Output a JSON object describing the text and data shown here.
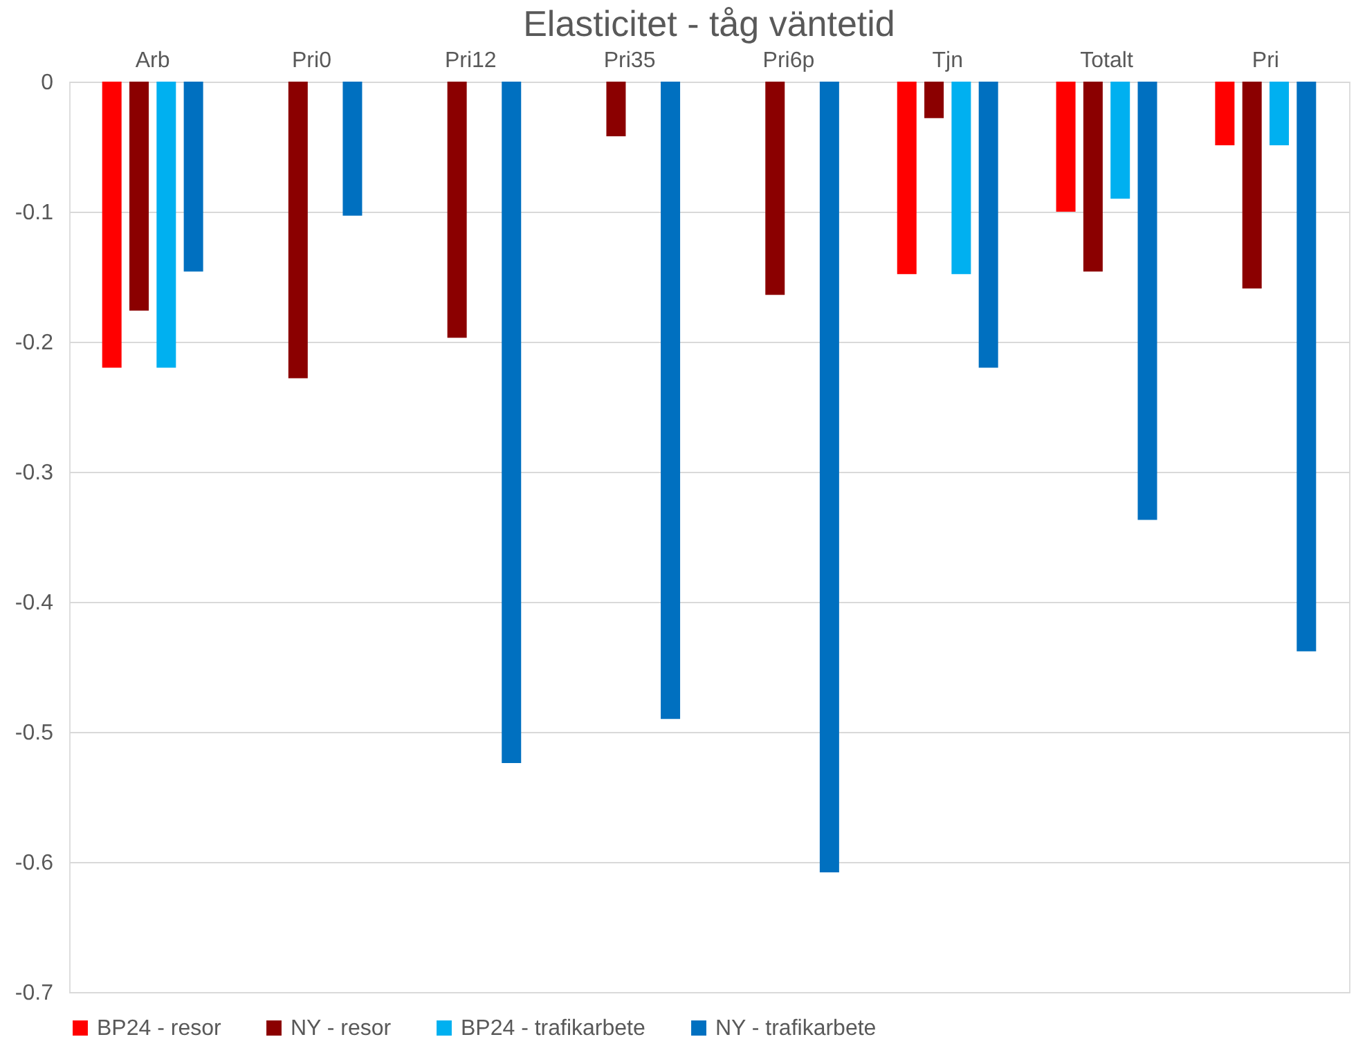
{
  "chart_data": {
    "type": "bar",
    "title": "Elasticitet - tåg väntetid",
    "categories": [
      "Arb",
      "Pri0",
      "Pri12",
      "Pri35",
      "Pri6p",
      "Tjn",
      "Totalt",
      "Pri"
    ],
    "series": [
      {
        "name": "BP24 - resor",
        "color": "#ff0000",
        "values": [
          -0.22,
          null,
          null,
          null,
          null,
          -0.148,
          -0.1,
          -0.049
        ]
      },
      {
        "name": "NY - resor",
        "color": "#8b0000",
        "values": [
          -0.176,
          -0.228,
          -0.197,
          -0.042,
          -0.164,
          -0.028,
          -0.146,
          -0.159
        ]
      },
      {
        "name": "BP24 - trafikarbete",
        "color": "#00b0f0",
        "values": [
          -0.22,
          null,
          null,
          null,
          null,
          -0.148,
          -0.09,
          -0.049
        ]
      },
      {
        "name": "NY - trafikarbete",
        "color": "#0070c0",
        "values": [
          -0.146,
          -0.103,
          -0.524,
          -0.49,
          -0.608,
          -0.22,
          -0.337,
          -0.438
        ]
      }
    ],
    "ylim": [
      -0.7,
      0
    ],
    "yticks": [
      0,
      -0.1,
      -0.2,
      -0.3,
      -0.4,
      -0.5,
      -0.6,
      -0.7
    ],
    "grid": "y",
    "legend": "bottom"
  }
}
